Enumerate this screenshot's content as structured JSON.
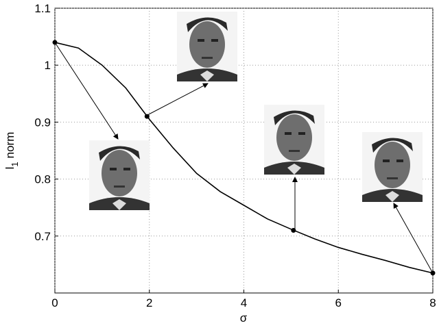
{
  "chart_data": {
    "type": "line",
    "xlabel": "σ",
    "ylabel": {
      "base": "l",
      "sub": "1",
      "rest": "norm"
    },
    "x": [
      0,
      0.5,
      1,
      1.5,
      2,
      2.5,
      3,
      3.5,
      4,
      4.5,
      5,
      5.5,
      6,
      6.5,
      7,
      7.5,
      8
    ],
    "series": [
      {
        "color": "#000000",
        "values": [
          1.04,
          1.03,
          1.0,
          0.96,
          0.905,
          0.855,
          0.81,
          0.778,
          0.754,
          0.73,
          0.712,
          0.695,
          0.68,
          0.668,
          0.657,
          0.645,
          0.635
        ]
      }
    ],
    "markers": {
      "x": [
        0,
        1.95,
        5.05,
        8
      ],
      "values": [
        1.04,
        0.91,
        0.71,
        0.635
      ]
    },
    "xlim": [
      0,
      8
    ],
    "ylim": [
      0.6,
      1.1
    ],
    "xticks": [
      0,
      2,
      4,
      6,
      8
    ],
    "yticks": [
      0.7,
      0.8,
      0.9,
      1,
      1.1
    ],
    "grid": true
  }
}
